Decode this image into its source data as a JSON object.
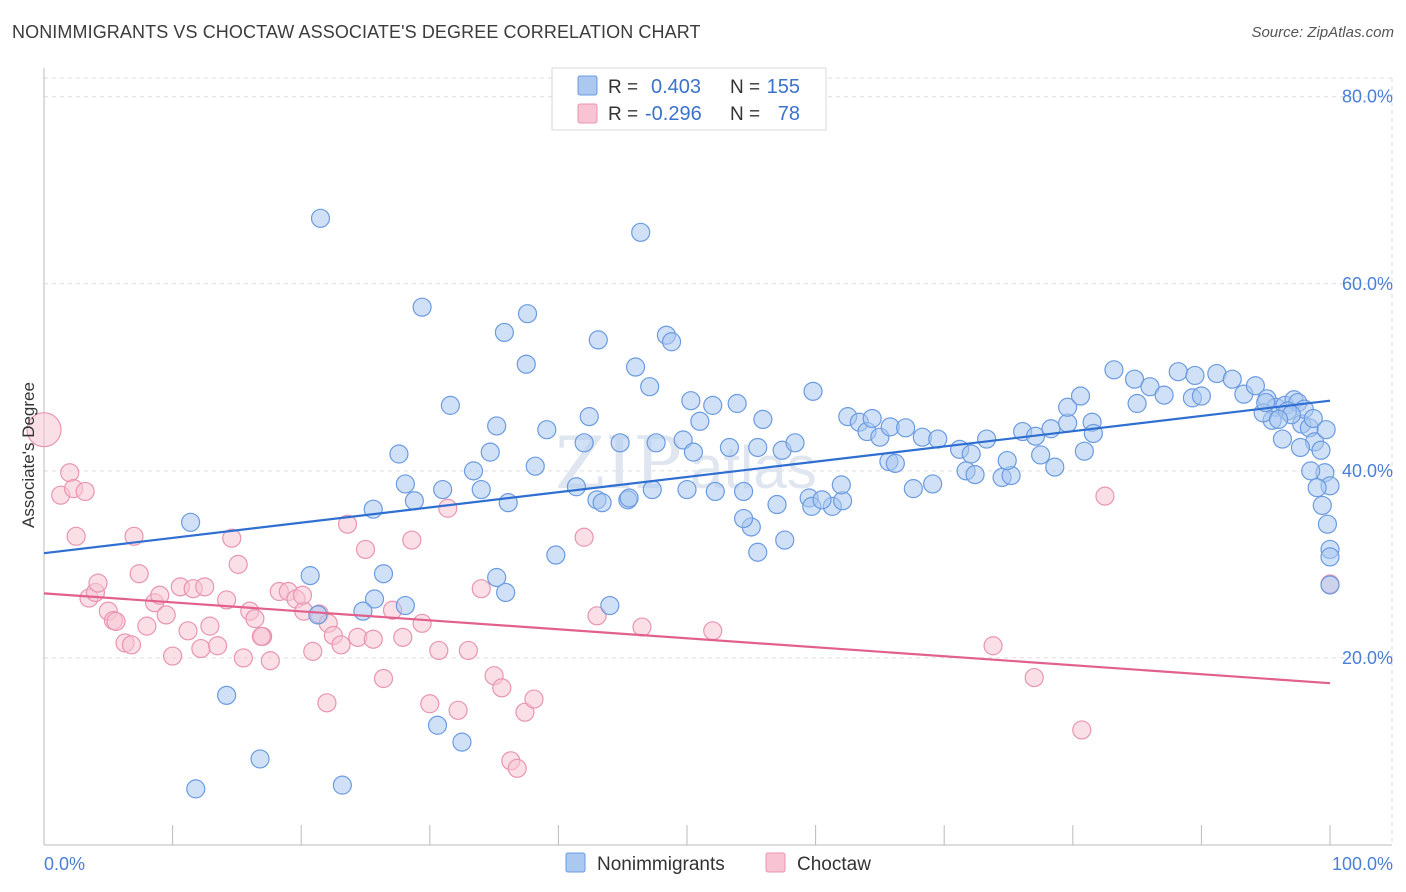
{
  "header": {
    "title": "NONIMMIGRANTS VS CHOCTAW ASSOCIATE'S DEGREE CORRELATION CHART",
    "source": "Source: ZipAtlas.com"
  },
  "watermark": {
    "zip": "ZIP",
    "atlas": "atlas"
  },
  "colors": {
    "blue_fill": "#aac8f0",
    "blue_stroke": "#6b9be0",
    "blue_line": "#2f6fd1",
    "pink_fill": "#f8c4d4",
    "pink_stroke": "#e895b1",
    "pink_line": "#e2608d",
    "grid": "#dcdcdc",
    "tick_text": "#4a7fd6"
  },
  "legend_top": {
    "rows": [
      {
        "r_label": "R =",
        "r_value": "0.403",
        "n_label": "N =",
        "n_value": "155",
        "series": "blue"
      },
      {
        "r_label": "R =",
        "r_value": "-0.296",
        "n_label": "N =",
        "n_value": "78",
        "series": "pink"
      }
    ]
  },
  "legend_bottom": {
    "items": [
      {
        "label": "Nonimmigrants",
        "series": "blue"
      },
      {
        "label": "Choctaw",
        "series": "pink"
      }
    ]
  },
  "chart_data": {
    "type": "scatter",
    "title": "NONIMMIGRANTS VS CHOCTAW ASSOCIATE'S DEGREE CORRELATION CHART",
    "xlabel": "",
    "ylabel": "Associate's Degree",
    "xlim": [
      0,
      100
    ],
    "ylim": [
      0,
      82
    ],
    "x_tick_labels": [
      {
        "value": 0,
        "label": "0.0%"
      },
      {
        "value": 100,
        "label": "100.0%"
      }
    ],
    "y_tick_labels": [
      {
        "value": 20,
        "label": "20.0%"
      },
      {
        "value": 40,
        "label": "40.0%"
      },
      {
        "value": 60,
        "label": "60.0%"
      },
      {
        "value": 80,
        "label": "80.0%"
      }
    ],
    "grid": true,
    "legend_position": "top-center",
    "series": [
      {
        "name": "Nonimmigrants",
        "color": "#aac8f0",
        "r": 0.403,
        "n": 155,
        "trendline": {
          "x": [
            0,
            100
          ],
          "y": [
            31.2,
            47.5
          ]
        },
        "points": [
          [
            21.5,
            67.0
          ],
          [
            46.4,
            65.5
          ],
          [
            29.4,
            57.5
          ],
          [
            37.6,
            56.8
          ],
          [
            43.1,
            54.0
          ],
          [
            35.8,
            54.8
          ],
          [
            48.4,
            54.5
          ],
          [
            48.8,
            53.8
          ],
          [
            37.5,
            51.4
          ],
          [
            46.0,
            51.1
          ],
          [
            31.6,
            47.0
          ],
          [
            47.1,
            49.0
          ],
          [
            50.3,
            47.5
          ],
          [
            52.0,
            47.0
          ],
          [
            53.9,
            47.2
          ],
          [
            59.8,
            48.5
          ],
          [
            55.9,
            45.5
          ],
          [
            51.0,
            45.3
          ],
          [
            42.4,
            45.8
          ],
          [
            35.2,
            44.8
          ],
          [
            39.1,
            44.4
          ],
          [
            42.0,
            43.0
          ],
          [
            44.8,
            43.0
          ],
          [
            47.6,
            43.0
          ],
          [
            49.7,
            43.3
          ],
          [
            50.5,
            42.0
          ],
          [
            53.3,
            42.5
          ],
          [
            55.5,
            42.5
          ],
          [
            57.4,
            42.2
          ],
          [
            58.4,
            43.0
          ],
          [
            27.6,
            41.8
          ],
          [
            34.7,
            42.0
          ],
          [
            38.2,
            40.5
          ],
          [
            33.4,
            40.0
          ],
          [
            28.1,
            38.6
          ],
          [
            31.0,
            38.0
          ],
          [
            34.0,
            38.0
          ],
          [
            41.4,
            38.3
          ],
          [
            36.1,
            36.6
          ],
          [
            28.8,
            36.8
          ],
          [
            25.6,
            35.9
          ],
          [
            43.0,
            36.9
          ],
          [
            45.4,
            36.9
          ],
          [
            47.3,
            38.0
          ],
          [
            50.0,
            38.0
          ],
          [
            52.2,
            37.8
          ],
          [
            54.4,
            37.8
          ],
          [
            57.0,
            36.4
          ],
          [
            59.5,
            37.1
          ],
          [
            61.3,
            36.2
          ],
          [
            62.1,
            36.8
          ],
          [
            62.5,
            45.8
          ],
          [
            63.4,
            45.2
          ],
          [
            64.0,
            44.2
          ],
          [
            64.4,
            45.6
          ],
          [
            65.0,
            43.6
          ],
          [
            65.8,
            44.7
          ],
          [
            67.0,
            44.6
          ],
          [
            68.3,
            43.6
          ],
          [
            69.5,
            43.4
          ],
          [
            71.2,
            42.3
          ],
          [
            71.7,
            40.0
          ],
          [
            72.4,
            39.6
          ],
          [
            74.5,
            39.3
          ],
          [
            75.2,
            39.5
          ],
          [
            76.1,
            44.2
          ],
          [
            77.1,
            43.7
          ],
          [
            78.3,
            44.5
          ],
          [
            79.6,
            45.1
          ],
          [
            79.6,
            46.8
          ],
          [
            80.6,
            48.0
          ],
          [
            81.5,
            45.2
          ],
          [
            81.6,
            44.0
          ],
          [
            83.2,
            50.8
          ],
          [
            84.8,
            49.8
          ],
          [
            85.0,
            47.2
          ],
          [
            86.0,
            49.0
          ],
          [
            87.1,
            48.1
          ],
          [
            88.2,
            50.6
          ],
          [
            89.3,
            47.8
          ],
          [
            89.5,
            50.2
          ],
          [
            90.0,
            48.0
          ],
          [
            91.2,
            50.4
          ],
          [
            92.4,
            49.8
          ],
          [
            93.3,
            48.2
          ],
          [
            94.2,
            49.1
          ],
          [
            95.1,
            47.7
          ],
          [
            95.8,
            46.8
          ],
          [
            96.5,
            47.0
          ],
          [
            97.2,
            47.6
          ],
          [
            97.8,
            45.0
          ],
          [
            98.4,
            44.6
          ],
          [
            98.8,
            43.1
          ],
          [
            99.3,
            42.2
          ],
          [
            99.6,
            39.8
          ],
          [
            100.0,
            38.4
          ],
          [
            97.5,
            47.3
          ],
          [
            98.0,
            46.6
          ],
          [
            98.7,
            45.6
          ],
          [
            99.7,
            44.4
          ],
          [
            96.7,
            46.4
          ],
          [
            95.5,
            45.4
          ],
          [
            94.8,
            46.2
          ],
          [
            97.0,
            46.0
          ],
          [
            96.0,
            45.5
          ],
          [
            95.0,
            47.3
          ],
          [
            96.3,
            43.4
          ],
          [
            97.7,
            42.5
          ],
          [
            98.5,
            40.0
          ],
          [
            99.0,
            38.2
          ],
          [
            99.4,
            36.3
          ],
          [
            99.8,
            34.3
          ],
          [
            100.0,
            31.6
          ],
          [
            100.0,
            30.8
          ],
          [
            100.0,
            27.8
          ],
          [
            11.4,
            34.5
          ],
          [
            20.7,
            28.8
          ],
          [
            25.7,
            26.3
          ],
          [
            26.4,
            29.0
          ],
          [
            28.1,
            25.6
          ],
          [
            21.3,
            24.6
          ],
          [
            24.8,
            25.0
          ],
          [
            14.2,
            16.0
          ],
          [
            11.8,
            6.0
          ],
          [
            16.8,
            9.2
          ],
          [
            23.2,
            6.4
          ],
          [
            30.6,
            12.8
          ],
          [
            32.5,
            11.0
          ],
          [
            35.2,
            28.6
          ],
          [
            35.9,
            27.0
          ],
          [
            44.0,
            25.6
          ],
          [
            39.8,
            31.0
          ],
          [
            43.4,
            36.6
          ],
          [
            45.5,
            37.1
          ],
          [
            55.0,
            34.0
          ],
          [
            54.4,
            34.9
          ],
          [
            55.5,
            31.3
          ],
          [
            57.6,
            32.6
          ],
          [
            59.7,
            36.2
          ],
          [
            60.5,
            36.9
          ],
          [
            65.7,
            41.0
          ],
          [
            67.6,
            38.1
          ],
          [
            72.1,
            41.8
          ],
          [
            73.3,
            43.4
          ],
          [
            74.9,
            41.1
          ],
          [
            77.5,
            41.7
          ],
          [
            78.6,
            40.4
          ],
          [
            80.9,
            42.1
          ],
          [
            62.0,
            38.5
          ],
          [
            66.2,
            40.8
          ],
          [
            69.1,
            38.6
          ]
        ]
      },
      {
        "name": "Choctaw",
        "color": "#f8c4d4",
        "r": -0.296,
        "n": 78,
        "trendline": {
          "x": [
            0,
            100
          ],
          "y": [
            26.9,
            17.3
          ]
        },
        "points": [
          [
            0.0,
            44.4
          ],
          [
            1.3,
            37.4
          ],
          [
            2.0,
            39.8
          ],
          [
            2.3,
            38.1
          ],
          [
            3.2,
            37.8
          ],
          [
            2.5,
            33.0
          ],
          [
            3.5,
            26.4
          ],
          [
            4.0,
            27.0
          ],
          [
            4.2,
            28.0
          ],
          [
            5.0,
            25.0
          ],
          [
            5.4,
            24.0
          ],
          [
            6.3,
            21.6
          ],
          [
            6.8,
            21.4
          ],
          [
            7.0,
            33.0
          ],
          [
            7.4,
            29.0
          ],
          [
            8.0,
            23.4
          ],
          [
            8.6,
            25.9
          ],
          [
            9.0,
            26.7
          ],
          [
            9.5,
            24.6
          ],
          [
            10.0,
            20.2
          ],
          [
            10.6,
            27.6
          ],
          [
            11.2,
            22.9
          ],
          [
            11.6,
            27.4
          ],
          [
            12.2,
            21.0
          ],
          [
            12.5,
            27.6
          ],
          [
            12.9,
            23.4
          ],
          [
            13.5,
            21.3
          ],
          [
            14.2,
            26.2
          ],
          [
            14.6,
            32.8
          ],
          [
            15.1,
            30.0
          ],
          [
            15.5,
            20.0
          ],
          [
            16.0,
            25.0
          ],
          [
            16.4,
            24.2
          ],
          [
            17.0,
            22.3
          ],
          [
            17.6,
            19.7
          ],
          [
            18.3,
            27.1
          ],
          [
            19.0,
            27.1
          ],
          [
            19.6,
            26.3
          ],
          [
            20.2,
            25.0
          ],
          [
            20.9,
            20.7
          ],
          [
            21.4,
            24.7
          ],
          [
            22.1,
            23.7
          ],
          [
            22.5,
            22.4
          ],
          [
            23.1,
            21.4
          ],
          [
            23.6,
            34.3
          ],
          [
            24.4,
            22.2
          ],
          [
            25.0,
            31.6
          ],
          [
            25.6,
            22.0
          ],
          [
            26.4,
            17.8
          ],
          [
            27.1,
            25.1
          ],
          [
            27.9,
            22.2
          ],
          [
            28.6,
            32.6
          ],
          [
            29.4,
            23.7
          ],
          [
            30.0,
            15.1
          ],
          [
            30.7,
            20.8
          ],
          [
            31.4,
            36.0
          ],
          [
            32.2,
            14.4
          ],
          [
            33.0,
            20.8
          ],
          [
            34.0,
            27.4
          ],
          [
            35.0,
            18.1
          ],
          [
            35.6,
            16.8
          ],
          [
            36.3,
            9.0
          ],
          [
            36.8,
            8.2
          ],
          [
            37.4,
            14.2
          ],
          [
            38.1,
            15.6
          ],
          [
            42.0,
            32.9
          ],
          [
            43.0,
            24.5
          ],
          [
            46.5,
            23.3
          ],
          [
            52.0,
            22.9
          ],
          [
            73.8,
            21.3
          ],
          [
            77.0,
            17.9
          ],
          [
            80.7,
            12.3
          ],
          [
            82.5,
            37.3
          ],
          [
            100.0,
            27.9
          ],
          [
            22.0,
            15.2
          ],
          [
            16.9,
            22.3
          ],
          [
            5.6,
            23.9
          ],
          [
            20.1,
            26.7
          ]
        ]
      }
    ]
  }
}
